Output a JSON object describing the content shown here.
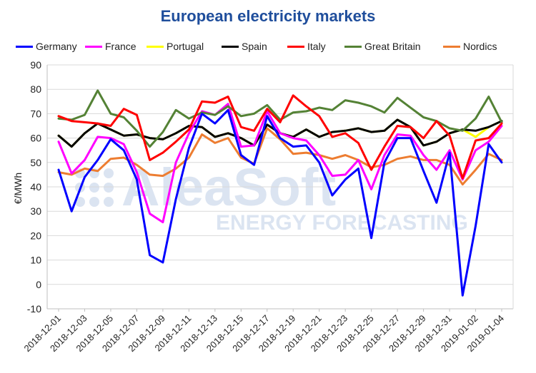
{
  "chart_data": {
    "type": "line",
    "title": "European electricity markets",
    "xlabel": "",
    "ylabel": "€/MWh",
    "ylim": [
      -10,
      90
    ],
    "yticks": [
      -10,
      0,
      10,
      20,
      30,
      40,
      50,
      60,
      70,
      80,
      90
    ],
    "grid": true,
    "legend": "top",
    "x": [
      "2018-12-01",
      "2018-12-02",
      "2018-12-03",
      "2018-12-04",
      "2018-12-05",
      "2018-12-06",
      "2018-12-07",
      "2018-12-08",
      "2018-12-09",
      "2018-12-10",
      "2018-12-11",
      "2018-12-12",
      "2018-12-13",
      "2018-12-14",
      "2018-12-15",
      "2018-12-16",
      "2018-12-17",
      "2018-12-18",
      "2018-12-19",
      "2018-12-20",
      "2018-12-21",
      "2018-12-22",
      "2018-12-23",
      "2018-12-24",
      "2018-12-25",
      "2018-12-26",
      "2018-12-27",
      "2018-12-28",
      "2018-12-29",
      "2018-12-30",
      "2018-12-31",
      "2019-01-01",
      "2019-01-02",
      "2019-01-03",
      "2019-01-04"
    ],
    "xtick_labels": [
      "2018-12-01",
      "2018-12-03",
      "2018-12-05",
      "2018-12-07",
      "2018-12-09",
      "2018-12-11",
      "2018-12-13",
      "2018-12-15",
      "2018-12-17",
      "2018-12-19",
      "2018-12-21",
      "2018-12-23",
      "2018-12-25",
      "2018-12-27",
      "2018-12-29",
      "2018-12-31",
      "2019-01-02",
      "2019-01-04"
    ],
    "series": [
      {
        "name": "Nordics",
        "color": "#ed7d31",
        "values": [
          46,
          45,
          47.5,
          46.5,
          51.5,
          52,
          49,
          45,
          44.5,
          47.5,
          52,
          61.5,
          58,
          60,
          52,
          49.5,
          64,
          59.5,
          53.5,
          54,
          53,
          51.5,
          53,
          51,
          48,
          49,
          51.5,
          52.5,
          51,
          51,
          49,
          41,
          47,
          53.5,
          51
        ]
      },
      {
        "name": "Portugal",
        "color": "#ffff00",
        "values": [
          61,
          56.5,
          62,
          66,
          63.5,
          61,
          61.5,
          60,
          59.5,
          62,
          65,
          64.5,
          60.5,
          62,
          60,
          57,
          65.5,
          62,
          60.5,
          63.5,
          60.5,
          62.5,
          63,
          64,
          62.5,
          63,
          67.5,
          64.5,
          57,
          58.5,
          62,
          63.5,
          60.5,
          64.5,
          67
        ]
      },
      {
        "name": "Spain",
        "color": "#000000",
        "values": [
          61,
          56.5,
          62,
          66,
          63.5,
          61,
          61.5,
          60,
          59.5,
          62,
          65,
          64.5,
          60.5,
          62,
          60,
          57,
          65.5,
          62,
          60.5,
          63.5,
          60.5,
          62.5,
          63,
          64,
          62.5,
          63,
          67.5,
          64.5,
          57,
          58.5,
          62,
          63.5,
          63,
          64.5,
          67
        ]
      },
      {
        "name": "France",
        "color": "#ff00ff",
        "values": [
          58.5,
          45.5,
          51,
          60.5,
          60,
          57.5,
          46,
          29,
          25.5,
          50,
          62,
          71,
          69.5,
          74,
          56.5,
          57,
          71,
          62,
          60,
          59,
          53,
          44.5,
          45,
          51,
          39,
          53,
          61.5,
          61,
          53,
          47,
          55,
          43,
          55,
          58.5,
          65
        ]
      },
      {
        "name": "Great Britain",
        "color": "#548235",
        "values": [
          68,
          67.5,
          69.5,
          79.5,
          70,
          68.5,
          63,
          56.5,
          62.5,
          71.5,
          68,
          70.5,
          69.5,
          73,
          69,
          70,
          73.5,
          67.5,
          70.5,
          71,
          72.5,
          71.5,
          75.5,
          74.5,
          73,
          70.5,
          76.5,
          72.5,
          68.5,
          67,
          64,
          63,
          68,
          77,
          66.5
        ]
      },
      {
        "name": "Italy",
        "color": "#ff0000",
        "values": [
          69,
          67,
          66.5,
          66,
          65,
          72,
          69.5,
          51,
          54,
          58.5,
          63.5,
          75,
          74.5,
          77,
          64.5,
          63,
          72,
          66.5,
          77.5,
          73,
          69,
          60.5,
          62,
          58,
          47,
          56.5,
          65,
          64.5,
          60,
          67,
          61,
          43.5,
          59,
          60,
          66
        ]
      },
      {
        "name": "Germany",
        "color": "#0000ff",
        "values": [
          47,
          30,
          44,
          51,
          59.5,
          55,
          43,
          12,
          9,
          35,
          56,
          70,
          66,
          71.5,
          53,
          49,
          69,
          60,
          56.5,
          57,
          50,
          36.5,
          43,
          47.5,
          19,
          50,
          60,
          60,
          46.5,
          33.5,
          54,
          -4.5,
          24,
          57.5,
          50
        ]
      }
    ],
    "legend_order": [
      "Germany",
      "France",
      "Portugal",
      "Spain",
      "Italy",
      "Great Britain",
      "Nordics"
    ]
  },
  "watermark": {
    "brand": "AleaSoft",
    "tagline": "ENERGY FORECASTING",
    "color": "#dbe4f1"
  }
}
